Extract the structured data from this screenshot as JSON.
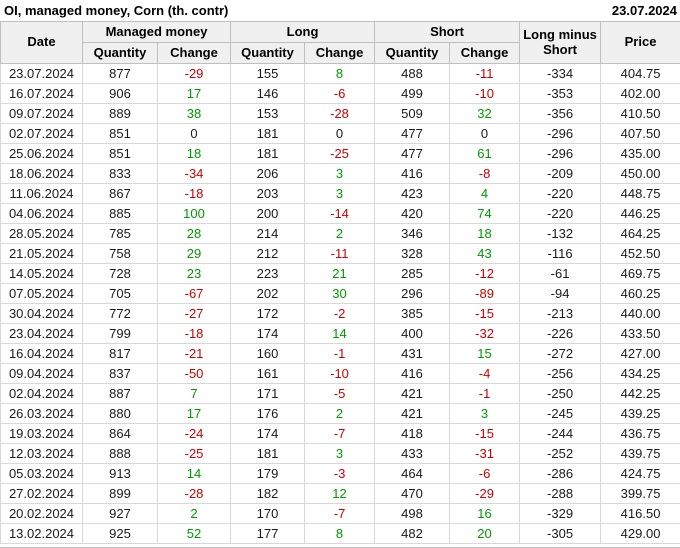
{
  "title": "OI, managed money, Corn (th. contr)",
  "report_date": "23.07.2024",
  "colors": {
    "positive": "#009900",
    "negative": "#cc0000",
    "neutral": "#1a1a1a"
  },
  "header": {
    "date": "Date",
    "managed_money": "Managed money",
    "long": "Long",
    "short": "Short",
    "quantity": "Quantity",
    "change": "Change",
    "long_minus_short": "Long minus Short",
    "price": "Price"
  },
  "chart_data": {
    "type": "table",
    "columns": [
      "Date",
      "Managed money Quantity",
      "Managed money Change",
      "Long Quantity",
      "Long Change",
      "Short Quantity",
      "Short Change",
      "Long minus Short",
      "Price"
    ],
    "rows": [
      [
        "23.07.2024",
        877,
        -29,
        155,
        8,
        488,
        -11,
        -334,
        "404.75"
      ],
      [
        "16.07.2024",
        906,
        17,
        146,
        -6,
        499,
        -10,
        -353,
        "402.00"
      ],
      [
        "09.07.2024",
        889,
        38,
        153,
        -28,
        509,
        32,
        -356,
        "410.50"
      ],
      [
        "02.07.2024",
        851,
        0,
        181,
        0,
        477,
        0,
        -296,
        "407.50"
      ],
      [
        "25.06.2024",
        851,
        18,
        181,
        -25,
        477,
        61,
        -296,
        "435.00"
      ],
      [
        "18.06.2024",
        833,
        -34,
        206,
        3,
        416,
        -8,
        -209,
        "450.00"
      ],
      [
        "11.06.2024",
        867,
        -18,
        203,
        3,
        423,
        4,
        -220,
        "448.75"
      ],
      [
        "04.06.2024",
        885,
        100,
        200,
        -14,
        420,
        74,
        -220,
        "446.25"
      ],
      [
        "28.05.2024",
        785,
        28,
        214,
        2,
        346,
        18,
        -132,
        "464.25"
      ],
      [
        "21.05.2024",
        758,
        29,
        212,
        -11,
        328,
        43,
        -116,
        "452.50"
      ],
      [
        "14.05.2024",
        728,
        23,
        223,
        21,
        285,
        -12,
        -61,
        "469.75"
      ],
      [
        "07.05.2024",
        705,
        -67,
        202,
        30,
        296,
        -89,
        -94,
        "460.25"
      ],
      [
        "30.04.2024",
        772,
        -27,
        172,
        -2,
        385,
        -15,
        -213,
        "440.00"
      ],
      [
        "23.04.2024",
        799,
        -18,
        174,
        14,
        400,
        -32,
        -226,
        "433.50"
      ],
      [
        "16.04.2024",
        817,
        -21,
        160,
        -1,
        431,
        15,
        -272,
        "427.00"
      ],
      [
        "09.04.2024",
        837,
        -50,
        161,
        -10,
        416,
        -4,
        -256,
        "434.25"
      ],
      [
        "02.04.2024",
        887,
        7,
        171,
        -5,
        421,
        -1,
        -250,
        "442.25"
      ],
      [
        "26.03.2024",
        880,
        17,
        176,
        2,
        421,
        3,
        -245,
        "439.25"
      ],
      [
        "19.03.2024",
        864,
        -24,
        174,
        -7,
        418,
        -15,
        -244,
        "436.75"
      ],
      [
        "12.03.2024",
        888,
        -25,
        181,
        3,
        433,
        -31,
        -252,
        "439.75"
      ],
      [
        "05.03.2024",
        913,
        14,
        179,
        -3,
        464,
        -6,
        -286,
        "424.75"
      ],
      [
        "27.02.2024",
        899,
        -28,
        182,
        12,
        470,
        -29,
        -288,
        "399.75"
      ],
      [
        "20.02.2024",
        927,
        2,
        170,
        -7,
        498,
        16,
        -329,
        "416.50"
      ],
      [
        "13.02.2024",
        925,
        52,
        177,
        8,
        482,
        20,
        -305,
        "429.00"
      ]
    ]
  }
}
